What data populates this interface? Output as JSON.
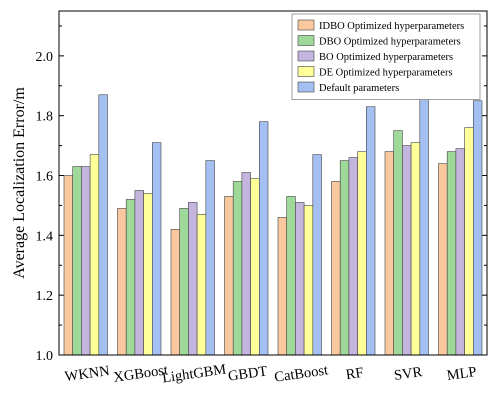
{
  "chart_data": {
    "type": "bar",
    "title": "",
    "xlabel": "",
    "ylabel": "Average Localization Error/m",
    "ylim": [
      1.0,
      2.15
    ],
    "yticks": [
      1.0,
      1.2,
      1.4,
      1.6,
      1.8,
      2.0
    ],
    "ytick_labels": [
      "1.0",
      "1.2",
      "1.4",
      "1.6",
      "1.8",
      "2.0"
    ],
    "grid": false,
    "legend_position": "top-right",
    "categories": [
      "WKNN",
      "XGBoost",
      "LightGBM",
      "GBDT",
      "CatBoost",
      "RF",
      "SVR",
      "MLP"
    ],
    "series": [
      {
        "name": "IDBO Optimized hyperparameters",
        "color": "#f9c89f",
        "values": [
          1.6,
          1.49,
          1.42,
          1.53,
          1.46,
          1.58,
          1.68,
          1.64
        ]
      },
      {
        "name": "DBO Optimized hyperparameters",
        "color": "#9fd99a",
        "values": [
          1.63,
          1.52,
          1.49,
          1.58,
          1.53,
          1.65,
          1.75,
          1.68
        ]
      },
      {
        "name": "BO Optimized hyperparameters",
        "color": "#c4b5de",
        "values": [
          1.63,
          1.55,
          1.51,
          1.61,
          1.51,
          1.66,
          1.7,
          1.69
        ]
      },
      {
        "name": "DE Optimized hyperparameters",
        "color": "#ffff99",
        "values": [
          1.67,
          1.54,
          1.47,
          1.59,
          1.5,
          1.68,
          1.71,
          1.76
        ]
      },
      {
        "name": "Default parameters",
        "color": "#a4bff2",
        "values": [
          1.87,
          1.71,
          1.65,
          1.78,
          1.67,
          1.83,
          1.88,
          1.85
        ]
      }
    ]
  }
}
